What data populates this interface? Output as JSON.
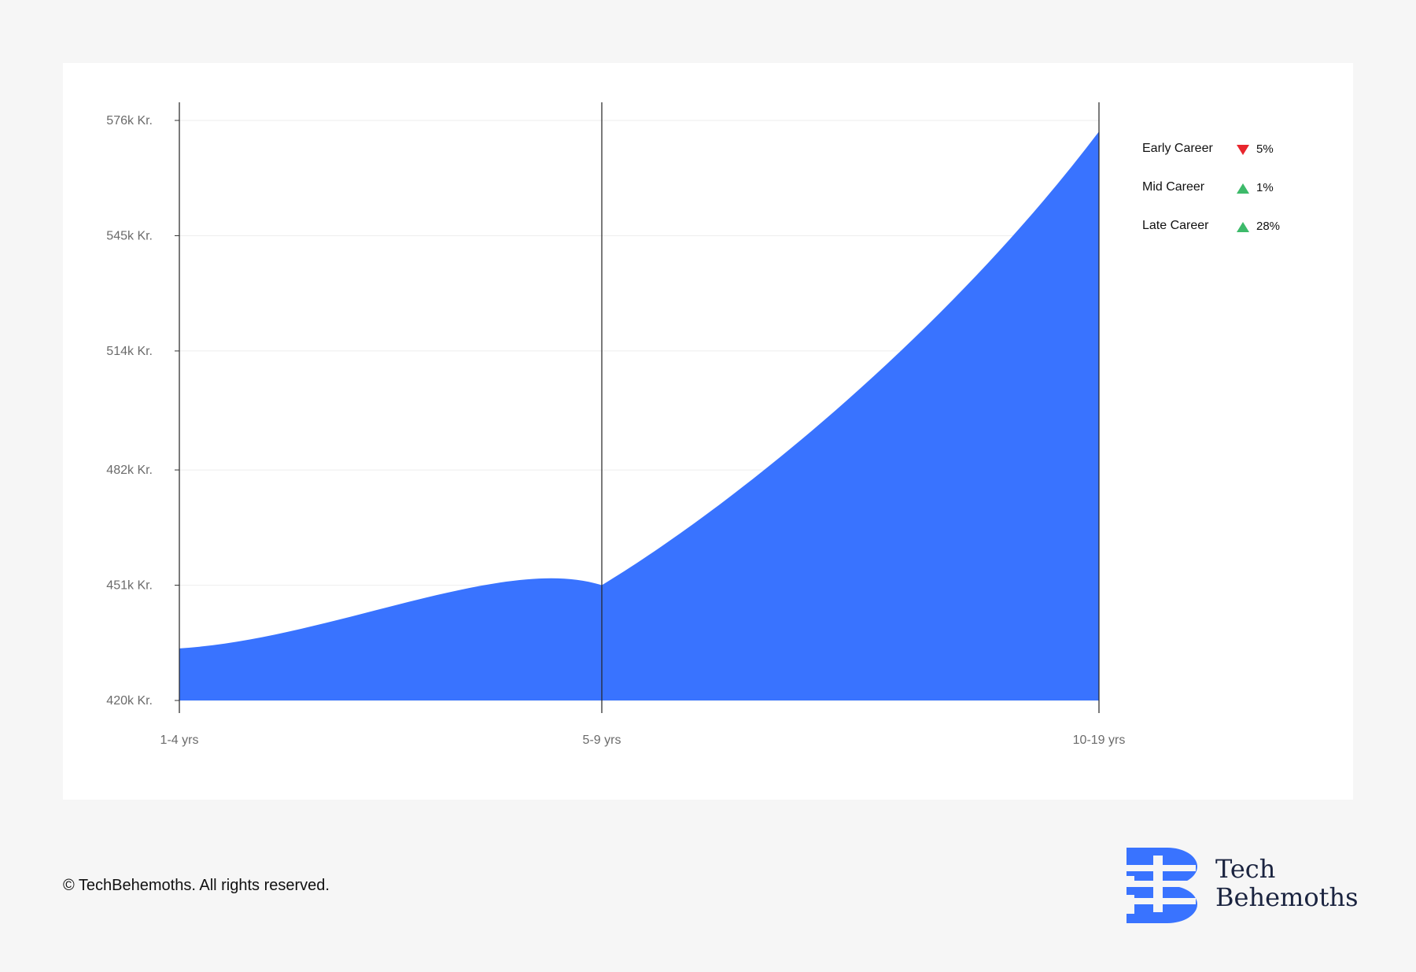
{
  "chart_data": {
    "type": "area",
    "categories": [
      "1-4 yrs",
      "5-9 yrs",
      "10-19 yrs"
    ],
    "series": [
      {
        "values": [
          434,
          451,
          573
        ]
      }
    ],
    "y_ticks": [
      420,
      451,
      482,
      514,
      545,
      576
    ],
    "y_tick_labels": [
      "420k Kr.",
      "451k Kr.",
      "482k Kr.",
      "514k Kr.",
      "545k Kr.",
      "576k Kr."
    ],
    "ylim": [
      420,
      578
    ],
    "fill_color": "#3973ff",
    "grid": true,
    "legend_position": "right"
  },
  "legend": [
    {
      "label": "Early Career",
      "direction": "down",
      "value": "5%"
    },
    {
      "label": "Mid Career",
      "direction": "up",
      "value": "1%"
    },
    {
      "label": "Late Career",
      "direction": "up",
      "value": "28%"
    }
  ],
  "colors": {
    "accent": "#3973ff",
    "decrease": "#e8262d",
    "increase": "#3dba6a",
    "background": "#f6f6f6"
  },
  "footer": {
    "copyright": "© TechBehemoths. All rights reserved."
  },
  "brand": {
    "line1": "Tech",
    "line2": "Behemoths"
  }
}
